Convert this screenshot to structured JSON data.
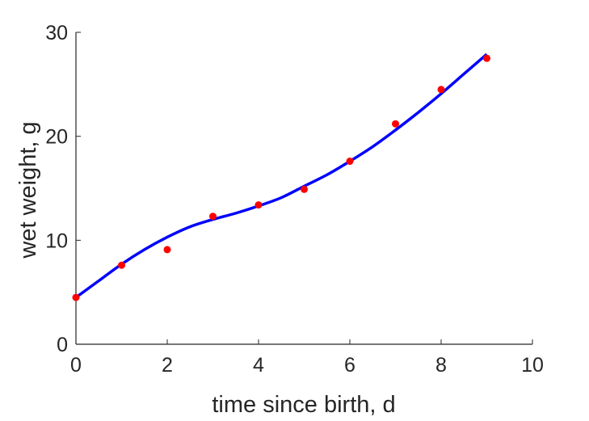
{
  "chart_data": {
    "type": "scatter",
    "title": "",
    "xlabel": "time since birth, d",
    "ylabel": "wet weight, g",
    "xlim": [
      0,
      10
    ],
    "ylim": [
      0,
      30
    ],
    "xticks": [
      "0",
      "2",
      "4",
      "6",
      "8",
      "10"
    ],
    "yticks": [
      "0",
      "10",
      "20",
      "30"
    ],
    "grid": false,
    "series": [
      {
        "kind": "points",
        "color": "#ff0000",
        "x": [
          0,
          1,
          2,
          3,
          4,
          5,
          6,
          7,
          8,
          9
        ],
        "y": [
          4.5,
          7.6,
          9.1,
          12.3,
          13.4,
          14.9,
          17.6,
          21.2,
          24.5,
          27.5
        ]
      },
      {
        "kind": "fit-line",
        "color": "#0000ff",
        "x": [
          0,
          0.5,
          1,
          1.5,
          2,
          2.5,
          3,
          3.5,
          4,
          4.5,
          5,
          5.5,
          6,
          6.5,
          7,
          7.5,
          8,
          8.5,
          9
        ],
        "y": [
          4.5,
          6.1,
          7.7,
          9.1,
          10.3,
          11.3,
          12.0,
          12.6,
          13.3,
          14.1,
          15.2,
          16.3,
          17.6,
          19.0,
          20.6,
          22.3,
          24.1,
          26.0,
          27.9
        ]
      }
    ]
  }
}
